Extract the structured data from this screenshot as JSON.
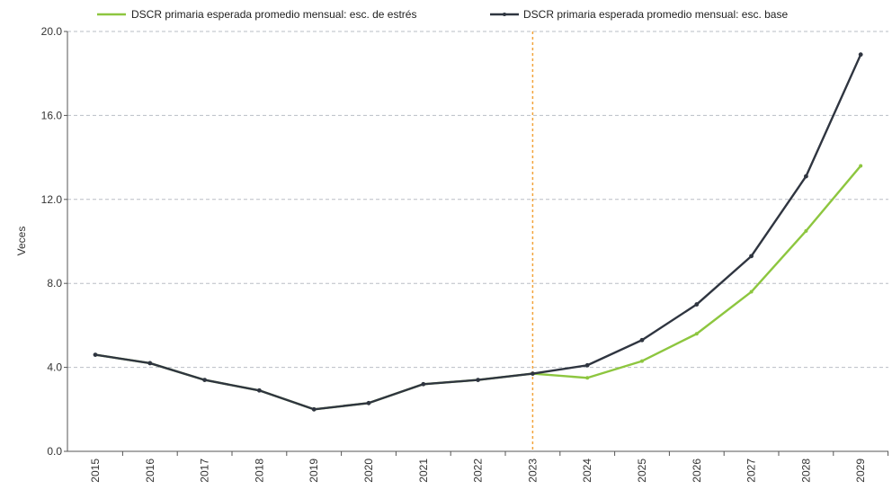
{
  "chart_data": {
    "type": "line",
    "title": "",
    "xlabel": "",
    "ylabel": "Veces",
    "categories": [
      "2015",
      "2016",
      "2017",
      "2018",
      "2019",
      "2020",
      "2021",
      "2022",
      "2023",
      "2024",
      "2025",
      "2026",
      "2027",
      "2028",
      "2029"
    ],
    "ylim": [
      0,
      20
    ],
    "yticks": [
      "0.0",
      "4.0",
      "8.0",
      "12.0",
      "16.0",
      "20.0"
    ],
    "grid": true,
    "legend_position": "top",
    "vertical_marker": {
      "category": "2023",
      "color": "#f2a33a"
    },
    "series": [
      {
        "name": "DSCR primaria esperada promedio mensual: esc. de estrés",
        "color": "#8dc63f",
        "values": [
          4.6,
          4.2,
          3.4,
          2.9,
          2.0,
          2.3,
          3.2,
          3.4,
          3.7,
          3.5,
          4.3,
          5.6,
          7.6,
          10.5,
          13.6
        ]
      },
      {
        "name": "DSCR primaria esperada promedio mensual: esc. base",
        "color": "#2f3540",
        "values": [
          4.6,
          4.2,
          3.4,
          2.9,
          2.0,
          2.3,
          3.2,
          3.4,
          3.7,
          4.1,
          5.3,
          7.0,
          9.3,
          13.1,
          18.9
        ]
      }
    ]
  }
}
